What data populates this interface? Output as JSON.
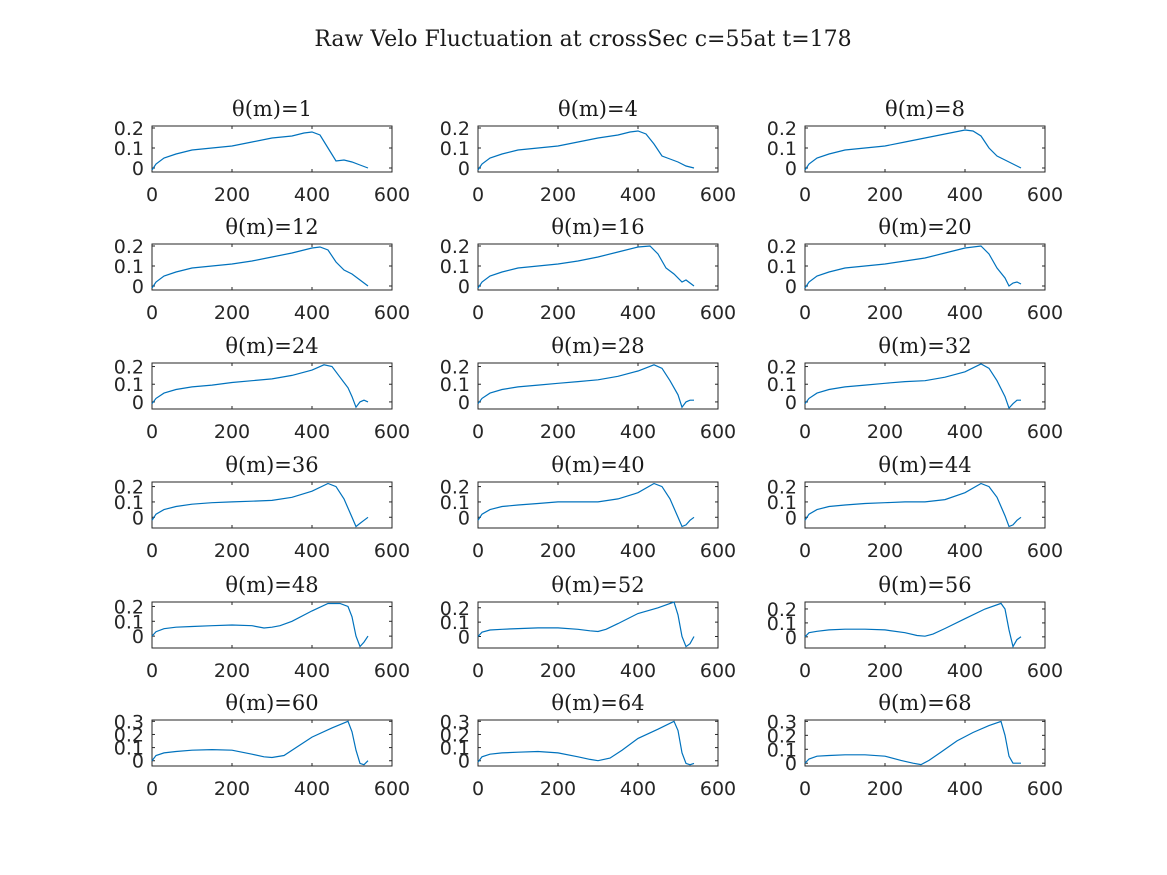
{
  "figure_title": "Raw Velo Fluctuation at crossSec c=55at t=178",
  "colors": {
    "series": "#0072BD",
    "axis": "#262626",
    "background": "#ffffff"
  },
  "chart_data": [
    {
      "type": "line",
      "title": "θ(m)=1",
      "xlim": [
        0,
        600
      ],
      "ylim": [
        -0.02,
        0.21
      ],
      "xticks": [
        0,
        200,
        400,
        600
      ],
      "yticks": [
        0,
        0.1,
        0.2
      ],
      "ytick_labels": [
        "0",
        "0.1",
        "0.2"
      ],
      "grid": false,
      "x": [
        0,
        10,
        30,
        60,
        100,
        150,
        200,
        250,
        300,
        350,
        380,
        400,
        420,
        440,
        460,
        480,
        500,
        520,
        540
      ],
      "y": [
        -0.01,
        0.02,
        0.05,
        0.07,
        0.09,
        0.1,
        0.11,
        0.13,
        0.15,
        0.16,
        0.175,
        0.18,
        0.165,
        0.1,
        0.035,
        0.04,
        0.03,
        0.015,
        0.0
      ]
    },
    {
      "type": "line",
      "title": "θ(m)=4",
      "xlim": [
        0,
        600
      ],
      "ylim": [
        -0.02,
        0.21
      ],
      "xticks": [
        0,
        200,
        400,
        600
      ],
      "yticks": [
        0,
        0.1,
        0.2
      ],
      "ytick_labels": [
        "0",
        "0.1",
        "0.2"
      ],
      "grid": false,
      "x": [
        0,
        10,
        30,
        60,
        100,
        150,
        200,
        250,
        300,
        350,
        380,
        400,
        420,
        440,
        460,
        480,
        500,
        520,
        540
      ],
      "y": [
        -0.01,
        0.02,
        0.05,
        0.07,
        0.09,
        0.1,
        0.11,
        0.13,
        0.15,
        0.165,
        0.18,
        0.185,
        0.17,
        0.12,
        0.06,
        0.045,
        0.03,
        0.01,
        0.0
      ]
    },
    {
      "type": "line",
      "title": "θ(m)=8",
      "xlim": [
        0,
        600
      ],
      "ylim": [
        -0.02,
        0.21
      ],
      "xticks": [
        0,
        200,
        400,
        600
      ],
      "yticks": [
        0,
        0.1,
        0.2
      ],
      "ytick_labels": [
        "0",
        "0.1",
        "0.2"
      ],
      "grid": false,
      "x": [
        0,
        10,
        30,
        60,
        100,
        150,
        200,
        250,
        300,
        350,
        400,
        420,
        440,
        460,
        480,
        500,
        520,
        540
      ],
      "y": [
        -0.01,
        0.02,
        0.05,
        0.07,
        0.09,
        0.1,
        0.11,
        0.13,
        0.15,
        0.17,
        0.19,
        0.185,
        0.16,
        0.1,
        0.06,
        0.04,
        0.02,
        0.0
      ]
    },
    {
      "type": "line",
      "title": "θ(m)=12",
      "xlim": [
        0,
        600
      ],
      "ylim": [
        -0.02,
        0.21
      ],
      "xticks": [
        0,
        200,
        400,
        600
      ],
      "yticks": [
        0,
        0.1,
        0.2
      ],
      "ytick_labels": [
        "0",
        "0.1",
        "0.2"
      ],
      "grid": false,
      "x": [
        0,
        10,
        30,
        60,
        100,
        150,
        200,
        250,
        300,
        350,
        400,
        420,
        440,
        460,
        480,
        500,
        520,
        540
      ],
      "y": [
        -0.01,
        0.02,
        0.05,
        0.07,
        0.09,
        0.1,
        0.11,
        0.125,
        0.145,
        0.165,
        0.19,
        0.195,
        0.18,
        0.12,
        0.08,
        0.06,
        0.03,
        0.0
      ]
    },
    {
      "type": "line",
      "title": "θ(m)=16",
      "xlim": [
        0,
        600
      ],
      "ylim": [
        -0.02,
        0.21
      ],
      "xticks": [
        0,
        200,
        400,
        600
      ],
      "yticks": [
        0,
        0.1,
        0.2
      ],
      "ytick_labels": [
        "0",
        "0.1",
        "0.2"
      ],
      "grid": false,
      "x": [
        0,
        10,
        30,
        60,
        100,
        150,
        200,
        250,
        300,
        350,
        400,
        430,
        450,
        470,
        490,
        510,
        520,
        540
      ],
      "y": [
        -0.01,
        0.02,
        0.05,
        0.07,
        0.09,
        0.1,
        0.11,
        0.125,
        0.145,
        0.17,
        0.195,
        0.2,
        0.16,
        0.09,
        0.06,
        0.02,
        0.03,
        0.0
      ]
    },
    {
      "type": "line",
      "title": "θ(m)=20",
      "xlim": [
        0,
        600
      ],
      "ylim": [
        -0.02,
        0.21
      ],
      "xticks": [
        0,
        200,
        400,
        600
      ],
      "yticks": [
        0,
        0.1,
        0.2
      ],
      "ytick_labels": [
        "0",
        "0.1",
        "0.2"
      ],
      "grid": false,
      "x": [
        0,
        10,
        30,
        60,
        100,
        150,
        200,
        250,
        300,
        350,
        400,
        440,
        460,
        480,
        500,
        510,
        520,
        530,
        540
      ],
      "y": [
        -0.01,
        0.02,
        0.05,
        0.07,
        0.09,
        0.1,
        0.11,
        0.125,
        0.14,
        0.165,
        0.19,
        0.2,
        0.16,
        0.09,
        0.04,
        0.0,
        0.015,
        0.02,
        0.01
      ]
    },
    {
      "type": "line",
      "title": "θ(m)=24",
      "xlim": [
        0,
        600
      ],
      "ylim": [
        -0.04,
        0.22
      ],
      "xticks": [
        0,
        200,
        400,
        600
      ],
      "yticks": [
        0,
        0.1,
        0.2
      ],
      "ytick_labels": [
        "0",
        "0.1",
        "0.2"
      ],
      "grid": false,
      "x": [
        0,
        10,
        30,
        60,
        100,
        150,
        200,
        250,
        300,
        350,
        400,
        430,
        450,
        470,
        490,
        500,
        510,
        520,
        530,
        540
      ],
      "y": [
        -0.01,
        0.02,
        0.05,
        0.07,
        0.085,
        0.095,
        0.11,
        0.12,
        0.13,
        0.15,
        0.18,
        0.21,
        0.2,
        0.14,
        0.08,
        0.03,
        -0.03,
        0.0,
        0.01,
        0.0
      ]
    },
    {
      "type": "line",
      "title": "θ(m)=28",
      "xlim": [
        0,
        600
      ],
      "ylim": [
        -0.04,
        0.22
      ],
      "xticks": [
        0,
        200,
        400,
        600
      ],
      "yticks": [
        0,
        0.1,
        0.2
      ],
      "ytick_labels": [
        "0",
        "0.1",
        "0.2"
      ],
      "grid": false,
      "x": [
        0,
        10,
        30,
        60,
        100,
        150,
        200,
        250,
        300,
        350,
        400,
        440,
        460,
        480,
        500,
        510,
        520,
        530,
        540
      ],
      "y": [
        -0.01,
        0.02,
        0.05,
        0.07,
        0.085,
        0.095,
        0.105,
        0.115,
        0.125,
        0.145,
        0.175,
        0.21,
        0.19,
        0.12,
        0.04,
        -0.03,
        0.0,
        0.01,
        0.01
      ]
    },
    {
      "type": "line",
      "title": "θ(m)=32",
      "xlim": [
        0,
        600
      ],
      "ylim": [
        -0.04,
        0.22
      ],
      "xticks": [
        0,
        200,
        400,
        600
      ],
      "yticks": [
        0,
        0.1,
        0.2
      ],
      "ytick_labels": [
        "0",
        "0.1",
        "0.2"
      ],
      "grid": false,
      "x": [
        0,
        10,
        30,
        60,
        100,
        150,
        200,
        250,
        300,
        350,
        400,
        440,
        460,
        480,
        500,
        510,
        520,
        530,
        540
      ],
      "y": [
        -0.01,
        0.02,
        0.05,
        0.07,
        0.085,
        0.095,
        0.105,
        0.115,
        0.12,
        0.14,
        0.17,
        0.215,
        0.19,
        0.12,
        0.03,
        -0.035,
        -0.01,
        0.01,
        0.01
      ]
    },
    {
      "type": "line",
      "title": "θ(m)=36",
      "xlim": [
        0,
        600
      ],
      "ylim": [
        -0.07,
        0.23
      ],
      "xticks": [
        0,
        200,
        400,
        600
      ],
      "yticks": [
        0,
        0.1,
        0.2
      ],
      "ytick_labels": [
        "0",
        "0.1",
        "0.2"
      ],
      "grid": false,
      "x": [
        0,
        10,
        30,
        60,
        100,
        150,
        200,
        250,
        300,
        350,
        400,
        440,
        460,
        480,
        500,
        510,
        520,
        530,
        540
      ],
      "y": [
        -0.02,
        0.02,
        0.05,
        0.07,
        0.085,
        0.095,
        0.1,
        0.105,
        0.11,
        0.13,
        0.17,
        0.22,
        0.2,
        0.12,
        0.0,
        -0.06,
        -0.04,
        -0.02,
        0.0
      ]
    },
    {
      "type": "line",
      "title": "θ(m)=40",
      "xlim": [
        0,
        600
      ],
      "ylim": [
        -0.07,
        0.23
      ],
      "xticks": [
        0,
        200,
        400,
        600
      ],
      "yticks": [
        0,
        0.1,
        0.2
      ],
      "ytick_labels": [
        "0",
        "0.1",
        "0.2"
      ],
      "grid": false,
      "x": [
        0,
        10,
        30,
        60,
        100,
        150,
        200,
        250,
        300,
        350,
        400,
        440,
        460,
        480,
        500,
        510,
        520,
        530,
        540
      ],
      "y": [
        -0.02,
        0.02,
        0.05,
        0.07,
        0.08,
        0.09,
        0.1,
        0.1,
        0.1,
        0.12,
        0.16,
        0.22,
        0.2,
        0.12,
        0.0,
        -0.06,
        -0.05,
        -0.02,
        0.0
      ]
    },
    {
      "type": "line",
      "title": "θ(m)=44",
      "xlim": [
        0,
        600
      ],
      "ylim": [
        -0.07,
        0.23
      ],
      "xticks": [
        0,
        200,
        400,
        600
      ],
      "yticks": [
        0,
        0.1,
        0.2
      ],
      "ytick_labels": [
        "0",
        "0.1",
        "0.2"
      ],
      "grid": false,
      "x": [
        0,
        10,
        30,
        60,
        100,
        150,
        200,
        250,
        300,
        350,
        400,
        440,
        460,
        480,
        500,
        510,
        520,
        530,
        540
      ],
      "y": [
        -0.02,
        0.02,
        0.05,
        0.07,
        0.08,
        0.09,
        0.095,
        0.1,
        0.1,
        0.115,
        0.16,
        0.22,
        0.2,
        0.13,
        0.01,
        -0.06,
        -0.05,
        -0.02,
        0.0
      ]
    },
    {
      "type": "line",
      "title": "θ(m)=48",
      "xlim": [
        0,
        600
      ],
      "ylim": [
        -0.08,
        0.23
      ],
      "xticks": [
        0,
        200,
        400,
        600
      ],
      "yticks": [
        0,
        0.1,
        0.2
      ],
      "ytick_labels": [
        "0",
        "0.1",
        "0.2"
      ],
      "grid": false,
      "x": [
        0,
        10,
        30,
        60,
        100,
        150,
        200,
        250,
        280,
        300,
        320,
        350,
        400,
        440,
        470,
        490,
        500,
        510,
        520,
        530,
        540
      ],
      "y": [
        0.0,
        0.03,
        0.05,
        0.06,
        0.065,
        0.07,
        0.075,
        0.07,
        0.055,
        0.06,
        0.07,
        0.1,
        0.17,
        0.22,
        0.22,
        0.2,
        0.13,
        0.0,
        -0.07,
        -0.04,
        0.0
      ]
    },
    {
      "type": "line",
      "title": "θ(m)=52",
      "xlim": [
        0,
        600
      ],
      "ylim": [
        -0.08,
        0.24
      ],
      "xticks": [
        0,
        200,
        400,
        600
      ],
      "yticks": [
        0,
        0.1,
        0.2
      ],
      "ytick_labels": [
        "0",
        "0.1",
        "0.2"
      ],
      "grid": false,
      "x": [
        0,
        10,
        30,
        60,
        100,
        150,
        200,
        250,
        280,
        300,
        320,
        350,
        400,
        450,
        490,
        500,
        510,
        520,
        530,
        540
      ],
      "y": [
        0.0,
        0.03,
        0.045,
        0.05,
        0.055,
        0.06,
        0.06,
        0.05,
        0.04,
        0.035,
        0.05,
        0.09,
        0.16,
        0.2,
        0.24,
        0.15,
        0.0,
        -0.07,
        -0.05,
        0.0
      ]
    },
    {
      "type": "line",
      "title": "θ(m)=56",
      "xlim": [
        0,
        600
      ],
      "ylim": [
        -0.08,
        0.25
      ],
      "xticks": [
        0,
        200,
        400,
        600
      ],
      "yticks": [
        0,
        0.1,
        0.2
      ],
      "ytick_labels": [
        "0",
        "0.1",
        "0.2"
      ],
      "grid": false,
      "x": [
        0,
        10,
        30,
        60,
        100,
        150,
        200,
        250,
        280,
        300,
        320,
        350,
        400,
        450,
        490,
        500,
        510,
        520,
        530,
        540
      ],
      "y": [
        0.0,
        0.03,
        0.04,
        0.05,
        0.055,
        0.055,
        0.05,
        0.03,
        0.01,
        0.005,
        0.02,
        0.06,
        0.13,
        0.2,
        0.24,
        0.2,
        0.05,
        -0.07,
        -0.02,
        0.0
      ]
    },
    {
      "type": "line",
      "title": "θ(m)=60",
      "xlim": [
        0,
        600
      ],
      "ylim": [
        -0.04,
        0.31
      ],
      "xticks": [
        0,
        200,
        400,
        600
      ],
      "yticks": [
        0,
        0.1,
        0.2,
        0.3
      ],
      "ytick_labels": [
        "0",
        "0.1",
        "0.2",
        "0.3"
      ],
      "grid": false,
      "x": [
        0,
        10,
        30,
        60,
        100,
        150,
        200,
        250,
        280,
        300,
        330,
        360,
        400,
        450,
        490,
        500,
        510,
        520,
        530,
        540
      ],
      "y": [
        0.0,
        0.04,
        0.06,
        0.07,
        0.08,
        0.085,
        0.08,
        0.05,
        0.03,
        0.025,
        0.04,
        0.1,
        0.18,
        0.25,
        0.3,
        0.22,
        0.08,
        -0.02,
        -0.03,
        0.0
      ]
    },
    {
      "type": "line",
      "title": "θ(m)=64",
      "xlim": [
        0,
        600
      ],
      "ylim": [
        -0.04,
        0.31
      ],
      "xticks": [
        0,
        200,
        400,
        600
      ],
      "yticks": [
        0,
        0.1,
        0.2,
        0.3
      ],
      "ytick_labels": [
        "0",
        "0.1",
        "0.2",
        "0.3"
      ],
      "grid": false,
      "x": [
        0,
        10,
        30,
        60,
        100,
        150,
        200,
        250,
        280,
        300,
        330,
        360,
        400,
        450,
        490,
        500,
        510,
        520,
        530,
        540
      ],
      "y": [
        -0.01,
        0.03,
        0.05,
        0.06,
        0.065,
        0.07,
        0.06,
        0.03,
        0.01,
        0.0,
        0.02,
        0.08,
        0.17,
        0.24,
        0.3,
        0.23,
        0.06,
        -0.02,
        -0.03,
        -0.02
      ]
    },
    {
      "type": "line",
      "title": "θ(m)=68",
      "xlim": [
        0,
        600
      ],
      "ylim": [
        -0.02,
        0.31
      ],
      "xticks": [
        0,
        200,
        400,
        600
      ],
      "yticks": [
        0,
        0.1,
        0.2,
        0.3
      ],
      "ytick_labels": [
        "0",
        "0.1",
        "0.2",
        "0.3"
      ],
      "grid": false,
      "x": [
        0,
        10,
        30,
        60,
        100,
        150,
        200,
        240,
        270,
        290,
        310,
        340,
        380,
        420,
        460,
        490,
        500,
        510,
        520,
        530,
        540
      ],
      "y": [
        0.0,
        0.03,
        0.05,
        0.055,
        0.06,
        0.06,
        0.05,
        0.02,
        0.0,
        -0.01,
        0.02,
        0.08,
        0.16,
        0.22,
        0.27,
        0.3,
        0.2,
        0.05,
        0.0,
        0.0,
        0.0
      ]
    }
  ]
}
